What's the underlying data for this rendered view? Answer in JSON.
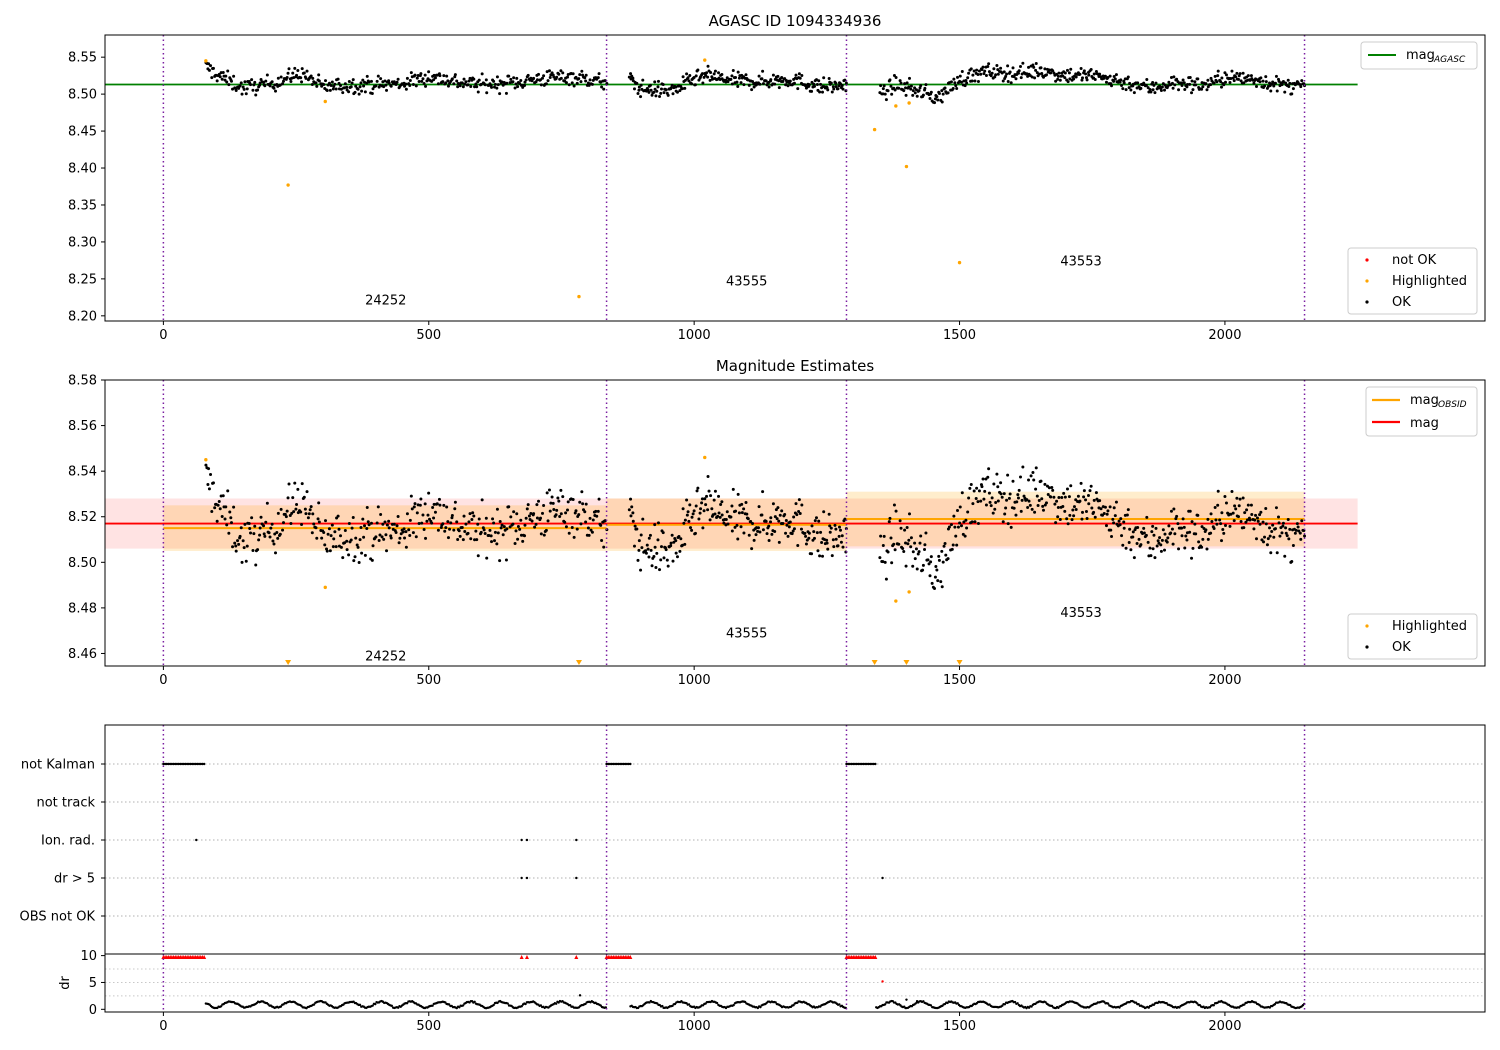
{
  "chart_data": [
    {
      "type": "scatter",
      "title": "AGASC ID 1094334936",
      "xlim": [
        -110,
        2490
      ],
      "ylim": [
        8.193,
        8.58
      ],
      "xticks": [
        0,
        500,
        1000,
        1500,
        2000
      ],
      "xtick_labels": [
        "0",
        "500",
        "1000",
        "1500",
        "2000"
      ],
      "yticks": [
        8.2,
        8.25,
        8.3,
        8.35,
        8.4,
        8.45,
        8.5,
        8.55
      ],
      "ytick_labels": [
        "8.20",
        "8.25",
        "8.30",
        "8.35",
        "8.40",
        "8.45",
        "8.50",
        "8.55"
      ],
      "obs_boundaries": [
        0,
        835,
        1287,
        2150
      ],
      "reference_line": {
        "name": "mag",
        "subscript": "AGASC",
        "value": 8.513,
        "x_range": [
          -110,
          2250
        ],
        "color": "#008000"
      },
      "ok_segments": [
        {
          "x_start": 80,
          "x_end": 835,
          "n": 420,
          "points": [
            [
              80,
              8.537
            ],
            [
              100,
              8.527
            ],
            [
              150,
              8.508
            ],
            [
              200,
              8.514
            ],
            [
              260,
              8.528
            ],
            [
              300,
              8.51
            ],
            [
              350,
              8.512
            ],
            [
              450,
              8.514
            ],
            [
              500,
              8.524
            ],
            [
              560,
              8.516
            ],
            [
              600,
              8.513
            ],
            [
              650,
              8.515
            ],
            [
              700,
              8.52
            ],
            [
              760,
              8.524
            ],
            [
              800,
              8.52
            ],
            [
              835,
              8.515
            ]
          ]
        },
        {
          "x_start": 878,
          "x_end": 1287,
          "n": 260,
          "points": [
            [
              878,
              8.52
            ],
            [
              900,
              8.507
            ],
            [
              960,
              8.505
            ],
            [
              1000,
              8.52
            ],
            [
              1030,
              8.525
            ],
            [
              1060,
              8.519
            ],
            [
              1120,
              8.517
            ],
            [
              1180,
              8.52
            ],
            [
              1240,
              8.51
            ],
            [
              1287,
              8.512
            ]
          ]
        },
        {
          "x_start": 1350,
          "x_end": 2150,
          "n": 470,
          "points": [
            [
              1350,
              8.5
            ],
            [
              1380,
              8.513
            ],
            [
              1420,
              8.505
            ],
            [
              1460,
              8.495
            ],
            [
              1500,
              8.52
            ],
            [
              1550,
              8.53
            ],
            [
              1600,
              8.528
            ],
            [
              1650,
              8.532
            ],
            [
              1700,
              8.526
            ],
            [
              1750,
              8.525
            ],
            [
              1800,
              8.518
            ],
            [
              1860,
              8.508
            ],
            [
              1900,
              8.515
            ],
            [
              1960,
              8.512
            ],
            [
              2000,
              8.522
            ],
            [
              2060,
              8.52
            ],
            [
              2100,
              8.512
            ],
            [
              2150,
              8.51
            ]
          ]
        }
      ],
      "highlighted": [
        [
          80,
          8.545
        ],
        [
          235,
          8.377
        ],
        [
          305,
          8.49
        ],
        [
          783,
          8.226
        ],
        [
          1020,
          8.546
        ],
        [
          1340,
          8.452
        ],
        [
          1380,
          8.484
        ],
        [
          1400,
          8.402
        ],
        [
          1405,
          8.488
        ],
        [
          1500,
          8.272
        ]
      ],
      "obs_labels": [
        {
          "text": "24252",
          "x": 380,
          "y": 8.215
        },
        {
          "text": "43555",
          "x": 1060,
          "y": 8.241
        },
        {
          "text": "43553",
          "x": 1690,
          "y": 8.268
        }
      ],
      "legend_top": {
        "location": "upper right",
        "entries": [
          {
            "label": "mag",
            "subscript": "AGASC",
            "color": "#008000",
            "kind": "line"
          }
        ]
      },
      "legend_bottom": {
        "location": "lower right",
        "entries": [
          {
            "label": "not OK",
            "color": "#ff0000",
            "kind": "dot"
          },
          {
            "label": "Highlighted",
            "color": "#ffa500",
            "kind": "dot"
          },
          {
            "label": "OK",
            "color": "#000000",
            "kind": "dot"
          }
        ]
      }
    },
    {
      "type": "scatter",
      "title": "Magnitude Estimates",
      "xlim": [
        -110,
        2490
      ],
      "ylim": [
        8.4545,
        8.58
      ],
      "xticks": [
        0,
        500,
        1000,
        1500,
        2000
      ],
      "xtick_labels": [
        "0",
        "500",
        "1000",
        "1500",
        "2000"
      ],
      "yticks": [
        8.46,
        8.48,
        8.5,
        8.52,
        8.54,
        8.56,
        8.58
      ],
      "ytick_labels": [
        "8.46",
        "8.48",
        "8.50",
        "8.52",
        "8.54",
        "8.56",
        "8.58"
      ],
      "obs_boundaries": [
        0,
        835,
        1287,
        2150
      ],
      "mag_line": {
        "name": "mag",
        "value": 8.517,
        "x_range": [
          -110,
          2250
        ],
        "band": [
          8.506,
          8.528
        ],
        "color": "#ff0000"
      },
      "mag_obsid": [
        {
          "x_range": [
            0,
            835
          ],
          "value": 8.515,
          "band": [
            8.505,
            8.525
          ]
        },
        {
          "x_range": [
            835,
            1287
          ],
          "value": 8.5165,
          "band": [
            8.505,
            8.528
          ]
        },
        {
          "x_range": [
            1287,
            2150
          ],
          "value": 8.519,
          "band": [
            8.507,
            8.531
          ]
        }
      ],
      "highlighted": [
        [
          80,
          8.545
        ],
        [
          305,
          8.489
        ],
        [
          1020,
          8.546
        ],
        [
          1380,
          8.483
        ],
        [
          1405,
          8.487
        ]
      ],
      "out_of_range_markers": [
        235,
        783,
        1340,
        1400,
        1500
      ],
      "obs_labels": [
        {
          "text": "24252",
          "x": 380,
          "y": 8.457
        },
        {
          "text": "43555",
          "x": 1060,
          "y": 8.467
        },
        {
          "text": "43553",
          "x": 1690,
          "y": 8.476
        }
      ],
      "legend_top": {
        "location": "upper right",
        "entries": [
          {
            "label": "mag",
            "subscript": "OBSID",
            "color": "#ffa500",
            "kind": "line"
          },
          {
            "label": "mag",
            "subscript": "",
            "color": "#ff0000",
            "kind": "line"
          }
        ]
      },
      "legend_bottom": {
        "location": "lower right",
        "entries": [
          {
            "label": "Highlighted",
            "color": "#ffa500",
            "kind": "dot"
          },
          {
            "label": "OK",
            "color": "#000000",
            "kind": "dot"
          }
        ]
      }
    },
    {
      "type": "scatter",
      "title": "",
      "xlim": [
        -110,
        2490
      ],
      "categories": [
        "not Kalman",
        "not track",
        "Ion. rad.",
        "dr > 5",
        "OBS not OK"
      ],
      "obs_boundaries": [
        0,
        835,
        1287,
        2150
      ],
      "flags": {
        "not Kalman": [
          [
            0,
            80
          ],
          [
            835,
            880
          ],
          [
            1287,
            1343
          ]
        ],
        "not track": [],
        "Ion. rad.": [
          [
            62
          ],
          [
            675
          ],
          [
            685
          ],
          [
            778
          ]
        ],
        "dr > 5": [
          [
            675
          ],
          [
            685
          ],
          [
            778
          ],
          [
            1355
          ]
        ],
        "OBS not OK": []
      }
    },
    {
      "type": "scatter",
      "title": "",
      "ylabel": "dr",
      "xlim": [
        -110,
        2490
      ],
      "ylim": [
        -0.5,
        10.3
      ],
      "xticks": [
        0,
        500,
        1000,
        1500,
        2000
      ],
      "xtick_labels": [
        "0",
        "500",
        "1000",
        "1500",
        "2000"
      ],
      "yticks": [
        0,
        5,
        10
      ],
      "ytick_labels": [
        "0",
        "5",
        "10"
      ],
      "obs_boundaries": [
        0,
        835,
        1287,
        2150
      ],
      "clipped_segments": [
        [
          0,
          80
        ],
        [
          835,
          880
        ],
        [
          1287,
          1343
        ]
      ],
      "clipped_points": [
        675,
        685,
        778
      ],
      "notable_points": [
        [
          785,
          2.6
        ],
        [
          1355,
          5.2
        ],
        [
          1400,
          1.8
        ],
        [
          1420,
          1.5
        ]
      ],
      "dr_segments": [
        [
          80,
          835
        ],
        [
          880,
          1287
        ],
        [
          1343,
          2150
        ]
      ]
    }
  ]
}
